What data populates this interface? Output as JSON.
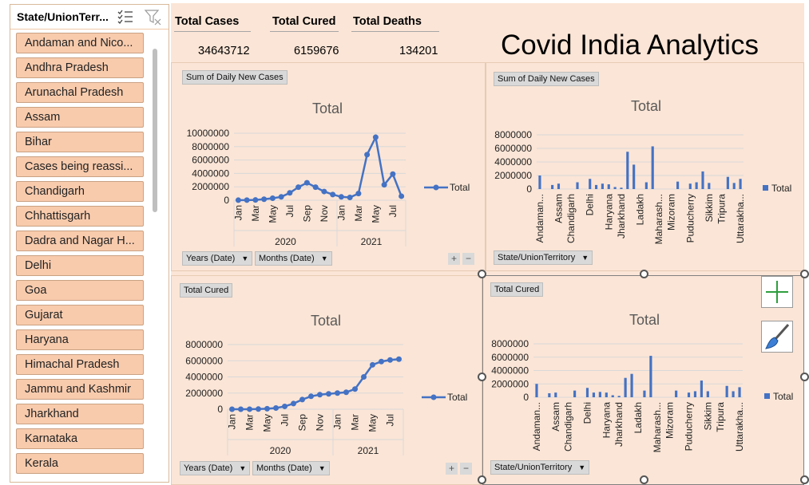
{
  "slicer": {
    "title": "State/UnionTerr...",
    "items": [
      "Andaman and Nico...",
      "Andhra Pradesh",
      "Arunachal Pradesh",
      "Assam",
      "Bihar",
      "Cases being reassi...",
      "Chandigarh",
      "Chhattisgarh",
      "Dadra and Nagar H...",
      "Delhi",
      "Goa",
      "Gujarat",
      "Haryana",
      "Himachal Pradesh",
      "Jammu and Kashmir",
      "Jharkhand",
      "Karnataka",
      "Kerala"
    ],
    "icons": {
      "multiselect": "multi-select-icon",
      "clear_filter": "clear-filter-icon"
    }
  },
  "kpis": {
    "cases": {
      "label": "Total Cases",
      "value": "34643712"
    },
    "cured": {
      "label": "Total Cured",
      "value": "6159676"
    },
    "deaths": {
      "label": "Total Deaths",
      "value": "134201"
    }
  },
  "title": "Covid India Analytics",
  "colors": {
    "series": "#4472c4",
    "slicer_item": "#f8cbad",
    "dashboard_bg": "#fbe5d6"
  },
  "charts": {
    "chart1": {
      "field_button": "Sum of  Daily New Cases",
      "filter_years": "Years (Date)",
      "filter_months": "Months (Date)",
      "plus": "+",
      "minus": "−"
    },
    "chart2": {
      "field_button": "Sum of  Daily New Cases",
      "filter_state": "State/UnionTerritory"
    },
    "chart3": {
      "field_button": "Total Cured",
      "filter_years": "Years (Date)",
      "filter_months": "Months (Date)",
      "plus": "+",
      "minus": "−"
    },
    "chart4": {
      "field_button": "Total Cured",
      "filter_state": "State/UnionTerritory"
    }
  },
  "chart_data": [
    {
      "type": "line",
      "title": "Total",
      "legend": "Total",
      "legend_position": "right",
      "yticks": [
        "10000000",
        "8000000",
        "6000000",
        "4000000",
        "2000000",
        "0"
      ],
      "ylim": [
        0,
        10000000
      ],
      "x": [
        "Jan",
        "Feb",
        "Mar",
        "Apr",
        "May",
        "Jun",
        "Jul",
        "Aug",
        "Sep",
        "Oct",
        "Nov",
        "Dec",
        "Jan",
        "Feb",
        "Mar",
        "Apr",
        "May",
        "Jun",
        "Jul",
        "Aug"
      ],
      "xtick_labels": [
        "Jan",
        "Mar",
        "May",
        "Jul",
        "Sep",
        "Nov",
        "Jan",
        "Mar",
        "May",
        "Jul"
      ],
      "years": [
        "2020",
        "2021"
      ],
      "series": [
        {
          "name": "Total",
          "values": [
            10000,
            20000,
            40000,
            150000,
            300000,
            500000,
            1100000,
            1950000,
            2600000,
            1950000,
            1300000,
            850000,
            500000,
            420000,
            1000000,
            6800000,
            9400000,
            2300000,
            3900000,
            600000
          ]
        }
      ]
    },
    {
      "type": "bar",
      "title": "Total",
      "legend": "Total",
      "legend_position": "right",
      "yticks": [
        "8000000",
        "6000000",
        "4000000",
        "2000000",
        "0"
      ],
      "ylim": [
        0,
        8000000
      ],
      "category_labels": [
        "Andaman...",
        "Assam",
        "Chandigarh",
        "Delhi",
        "Haryana",
        "Jharkhand",
        "Ladakh",
        "Maharash...",
        "Mizoram",
        "Puducherry",
        "Sikkim",
        "Tripura",
        "Uttarakha..."
      ],
      "series": [
        {
          "name": "Total",
          "values": [
            2000000,
            0,
            600000,
            800000,
            0,
            0,
            1000000,
            0,
            1500000,
            600000,
            800000,
            700000,
            300000,
            200000,
            5500000,
            3600000,
            0,
            1000000,
            6300000,
            0,
            0,
            0,
            1100000,
            0,
            800000,
            1000000,
            2600000,
            900000,
            0,
            0,
            1800000,
            900000,
            1500000
          ]
        }
      ]
    },
    {
      "type": "line",
      "title": "Total",
      "legend": "Total",
      "legend_position": "right",
      "yticks": [
        "8000000",
        "6000000",
        "4000000",
        "2000000",
        "0"
      ],
      "ylim": [
        0,
        8000000
      ],
      "x": [
        "Jan",
        "Feb",
        "Mar",
        "Apr",
        "May",
        "Jun",
        "Jul",
        "Aug",
        "Sep",
        "Oct",
        "Nov",
        "Dec",
        "Jan",
        "Feb",
        "Mar",
        "Apr",
        "May",
        "Jun",
        "Jul",
        "Aug"
      ],
      "xtick_labels": [
        "Jan",
        "Mar",
        "May",
        "Jul",
        "Sep",
        "Nov",
        "Jan",
        "Mar",
        "May",
        "Jul"
      ],
      "years": [
        "2020",
        "2021"
      ],
      "series": [
        {
          "name": "Total",
          "values": [
            0,
            0,
            5000,
            20000,
            60000,
            150000,
            350000,
            700000,
            1200000,
            1600000,
            1800000,
            1900000,
            2000000,
            2100000,
            2500000,
            4000000,
            5500000,
            5900000,
            6100000,
            6200000
          ]
        }
      ]
    },
    {
      "type": "bar",
      "title": "Total",
      "legend": "Total",
      "legend_position": "right",
      "yticks": [
        "8000000",
        "6000000",
        "4000000",
        "2000000",
        "0"
      ],
      "ylim": [
        0,
        8000000
      ],
      "category_labels": [
        "Andaman...",
        "Assam",
        "Chandigarh",
        "Delhi",
        "Haryana",
        "Jharkhand",
        "Ladakh",
        "Maharash...",
        "Mizoram",
        "Puducherry",
        "Sikkim",
        "Tripura",
        "Uttarakha..."
      ],
      "series": [
        {
          "name": "Total",
          "values": [
            2000000,
            0,
            600000,
            700000,
            0,
            0,
            1000000,
            0,
            1400000,
            700000,
            800000,
            700000,
            300000,
            200000,
            2900000,
            3500000,
            0,
            1000000,
            6200000,
            0,
            0,
            0,
            1000000,
            0,
            700000,
            900000,
            2500000,
            900000,
            0,
            0,
            1700000,
            900000,
            1500000
          ]
        }
      ]
    }
  ]
}
